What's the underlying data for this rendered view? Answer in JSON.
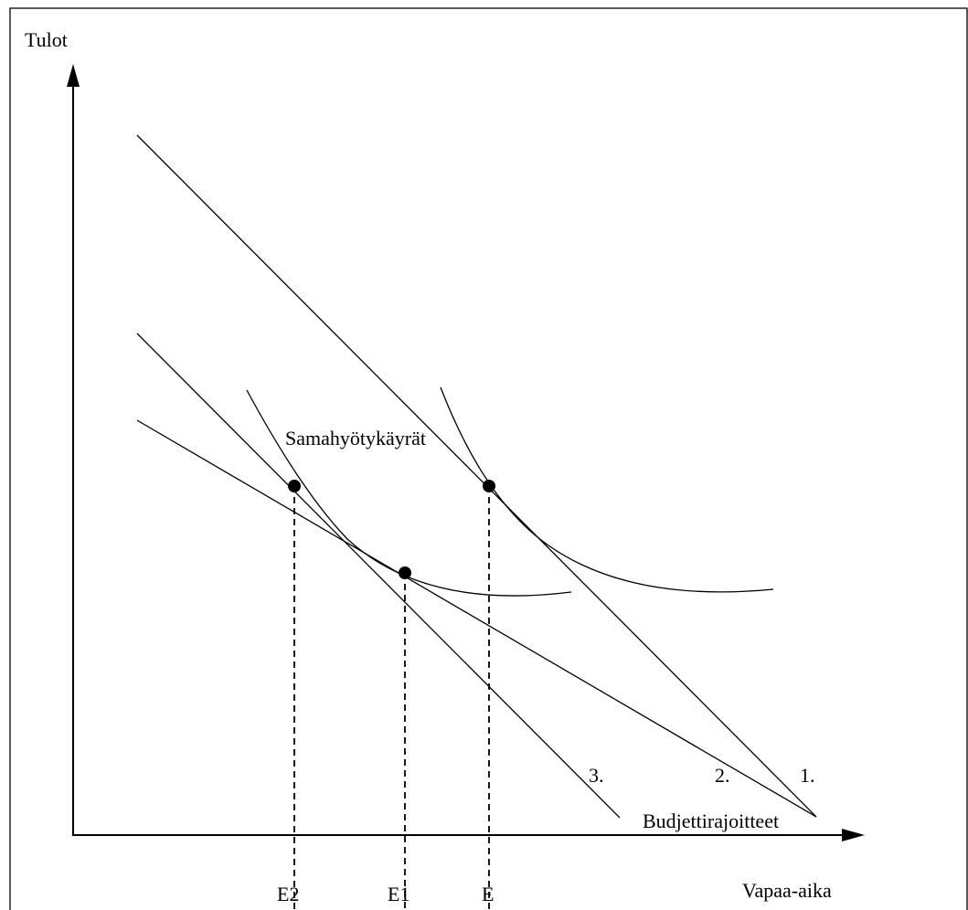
{
  "axes": {
    "y_label": "Tulot",
    "x_label": "Vapaa-aika"
  },
  "annotations": {
    "indifference_curves_label": "Samahyötykäyrät",
    "budget_constraints_label": "Budjettirajoitteet"
  },
  "budget_lines": [
    {
      "label": "1."
    },
    {
      "label": "2."
    },
    {
      "label": "3."
    }
  ],
  "equilibria": [
    {
      "label": "E"
    },
    {
      "label": "E1"
    },
    {
      "label": "E2"
    }
  ]
}
